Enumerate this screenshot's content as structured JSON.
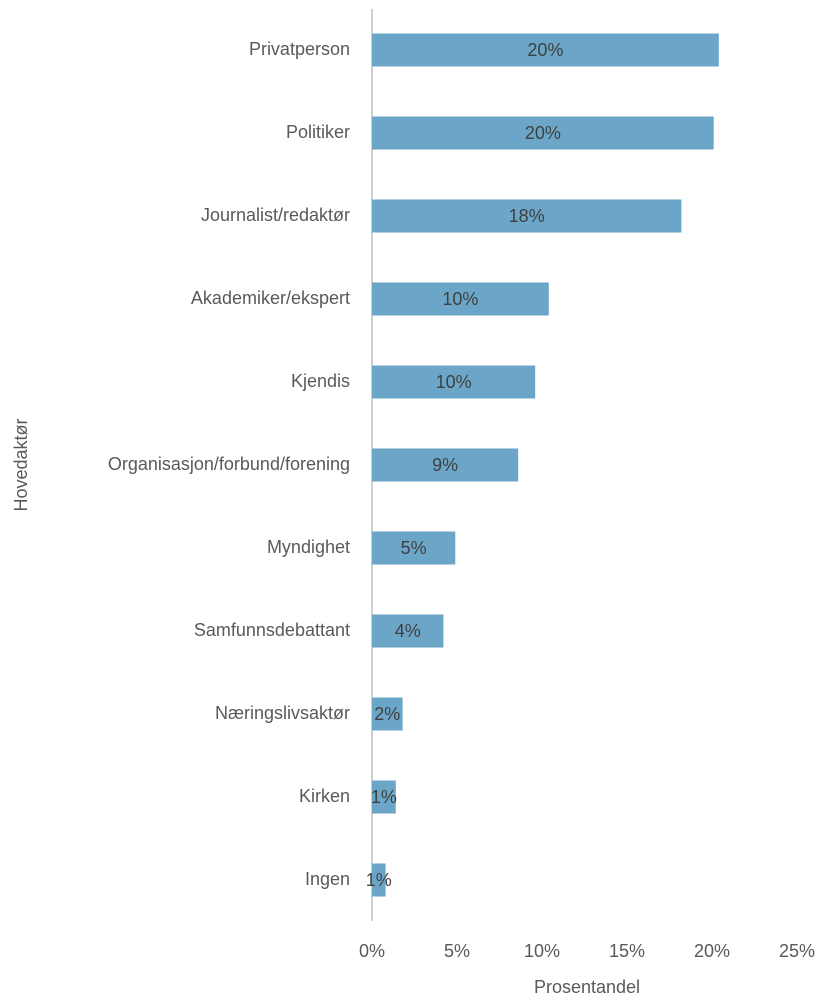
{
  "chart_data": {
    "type": "barh",
    "categories": [
      "Privatperson",
      "Politiker",
      "Journalist/redaktør",
      "Akademiker/ekspert",
      "Kjendis",
      "Organisasjon/forbund/forening",
      "Myndighet",
      "Samfunnsdebattant",
      "Næringslivsaktør",
      "Kirken",
      "Ingen"
    ],
    "values": [
      20.4,
      20.1,
      18.2,
      10.4,
      9.6,
      8.6,
      4.9,
      4.2,
      1.8,
      1.4,
      0.8
    ],
    "value_labels": [
      "20%",
      "20%",
      "18%",
      "10%",
      "10%",
      "9%",
      "5%",
      "4%",
      "2%",
      "1%",
      "1%"
    ],
    "color": "#6ba6c8",
    "xlim": [
      0,
      25
    ],
    "xticks": [
      {
        "value": 0,
        "label": "0%"
      },
      {
        "value": 5,
        "label": "5%"
      },
      {
        "value": 10,
        "label": "10%"
      },
      {
        "value": 15,
        "label": "15%"
      },
      {
        "value": 20,
        "label": "20%"
      },
      {
        "value": 25,
        "label": "25%"
      }
    ],
    "xlabel": "Prosentandel",
    "ylabel": "Hovedaktør",
    "grid": false
  }
}
